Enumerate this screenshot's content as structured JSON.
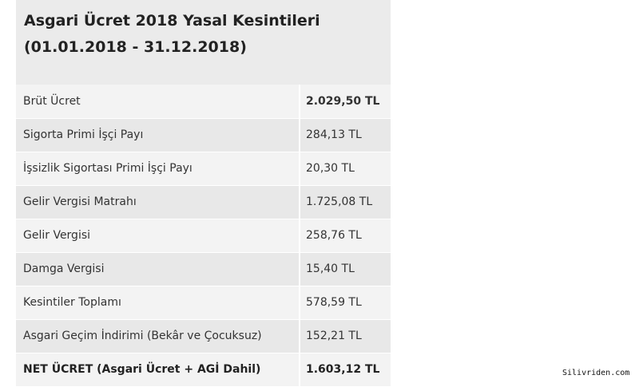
{
  "title": {
    "line1": "Asgari Ücret 2018 Yasal Kesintileri",
    "line2": "(01.01.2018 - 31.12.2018)"
  },
  "rows": [
    {
      "label": "Brüt Ücret",
      "value": "2.029,50 TL"
    },
    {
      "label": "Sigorta Primi İşçi Payı",
      "value": "284,13 TL"
    },
    {
      "label": "İşsizlik Sigortası Primi İşçi Payı",
      "value": "20,30 TL"
    },
    {
      "label": "Gelir Vergisi Matrahı",
      "value": "1.725,08 TL"
    },
    {
      "label": "Gelir Vergisi",
      "value": "258,76 TL"
    },
    {
      "label": "Damga Vergisi",
      "value": "15,40 TL"
    },
    {
      "label": "Kesintiler Toplamı",
      "value": "578,59 TL"
    },
    {
      "label": "Asgari Geçim İndirimi (Bekâr ve Çocuksuz)",
      "value": "152,21 TL"
    },
    {
      "label": "NET ÜCRET (Asgari Ücret + AGİ Dahil)",
      "value": "1.603,12 TL"
    }
  ],
  "watermark": "Silivriden.com",
  "colors": {
    "title_background": "#ebebeb",
    "row_light": "#f3f3f3",
    "row_dark": "#e8e8e8",
    "text": "#333333"
  }
}
